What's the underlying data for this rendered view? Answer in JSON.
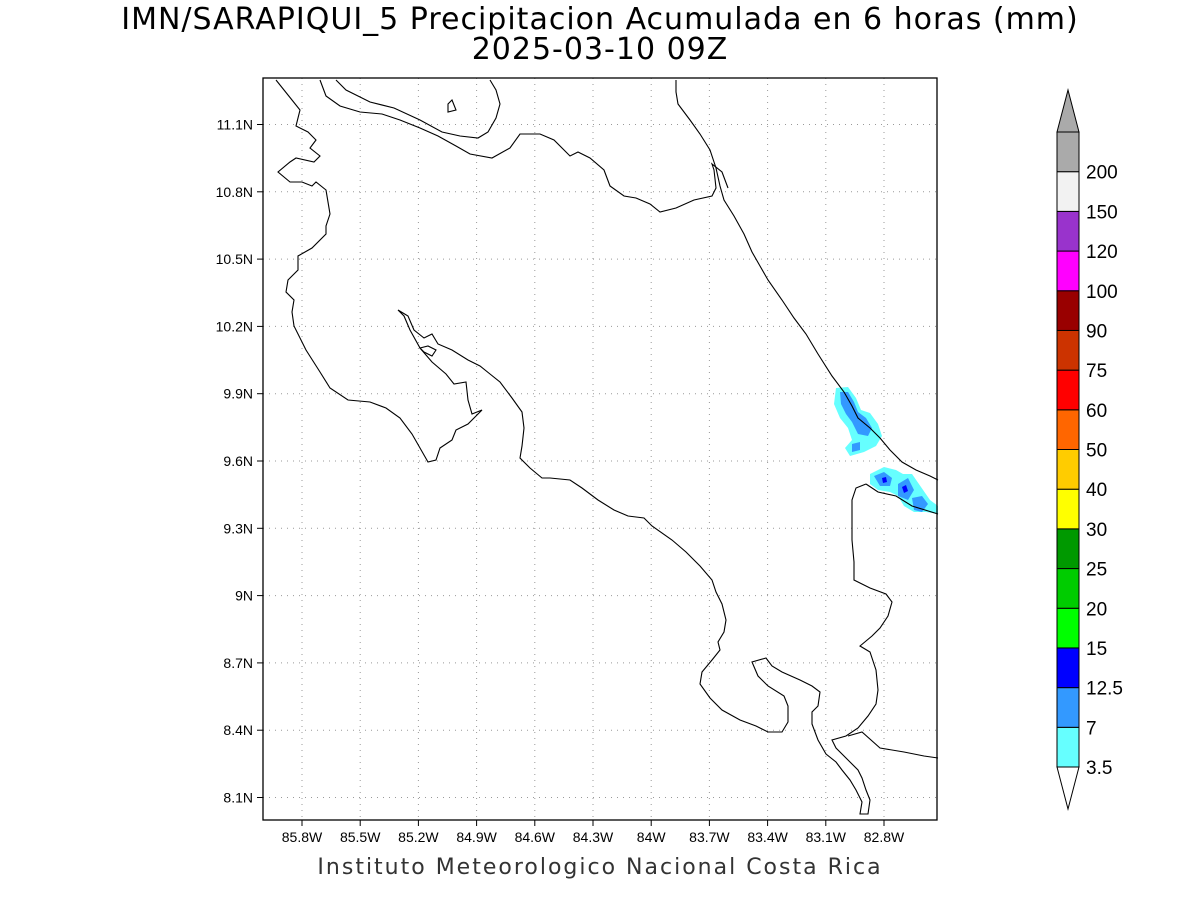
{
  "map": {
    "title_line1": "IMN/SARAPIQUI_5 Precipitacion Acumulada en 6 horas (mm)",
    "title_line2": "2025-03-10 09Z",
    "footer": "Instituto Meteorologico Nacional Costa Rica",
    "lat_labels": [
      "11.1N",
      "10.8N",
      "10.5N",
      "10.2N",
      "9.9N",
      "9.6N",
      "9.3N",
      "9N",
      "8.7N",
      "8.4N",
      "8.1N"
    ],
    "lon_labels": [
      "85.8W",
      "85.5W",
      "85.2W",
      "84.9W",
      "84.6W",
      "84.3W",
      "84W",
      "83.7W",
      "83.4W",
      "83.1W",
      "82.8W"
    ],
    "grid": "dotted"
  },
  "colorbar": {
    "levels": [
      "3.5",
      "7",
      "12.5",
      "15",
      "20",
      "25",
      "30",
      "40",
      "50",
      "60",
      "75",
      "90",
      "100",
      "120",
      "150",
      "200"
    ],
    "colors": [
      "#66ffff",
      "#3399ff",
      "#0000ff",
      "#00ff00",
      "#00cc00",
      "#009900",
      "#ffff00",
      "#ffcc00",
      "#ff6600",
      "#ff0000",
      "#cc3300",
      "#990000",
      "#ff00ff",
      "#9933cc",
      "#f2f2f2",
      "#aaaaaa"
    ],
    "below_color": "#ffffff",
    "above_color": "#aaaaaa"
  }
}
